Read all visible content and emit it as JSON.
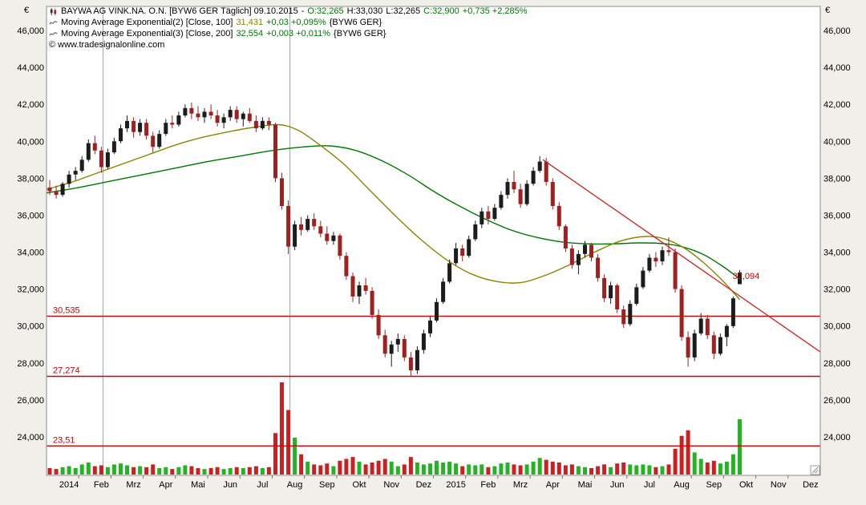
{
  "header": {
    "line1": {
      "title": "BAYWA AG VINK.NA. O.N. [BYW6 GER  Täglich] 09.10.2015",
      "sep": "-",
      "open": "O:32,265",
      "high": "H:33,030",
      "low": "L:32,265",
      "close": "C:32,900",
      "change": "+0,735 +2,285%"
    },
    "line2": {
      "name": "Moving Average Exponential(2) [Close, 100]",
      "value": "31,431",
      "change": "+0,03 +0,095%",
      "scope": "{BYW6 GER}"
    },
    "line3": {
      "name": "Moving Average Exponential(3) [Close, 200]",
      "value": "32,554",
      "change": "+0,003 +0,011%",
      "scope": "{BYW6 GER}"
    },
    "copyright": "© www.tradesignalonline.com"
  },
  "axes": {
    "currency_left": "€",
    "currency_right": "€"
  },
  "colors": {
    "background": "#f0efe9",
    "plot_bg": "#ffffff",
    "border": "#8e8e8e",
    "candle_up": "#1c1c1c",
    "candle_down": "#a02020",
    "volume_up": "#22b422",
    "volume_down": "#cc2020",
    "ema_100": "#868600",
    "ema_200": "#007700",
    "support": "#cc0000",
    "trend": "#cc2222",
    "event_line": "#8fa8b0",
    "value_up": "#007700",
    "text": "#000000"
  },
  "chart_data": {
    "type": "candlestick",
    "title": "BAYWA AG VINK.NA. O.N. [BYW6 GER Täglich]",
    "last_quote": {
      "date": "09.10.2015",
      "open": 32.265,
      "high": 33.03,
      "low": 32.265,
      "close": 32.9,
      "change_abs": 0.735,
      "change_pct": 2.285
    },
    "indicators": [
      {
        "name": "Moving Average Exponential(2) [Close, 100]",
        "last": 31.431,
        "change": "+0,03 +0,095%"
      },
      {
        "name": "Moving Average Exponential(3) [Close, 200]",
        "last": 32.554,
        "change": "+0,003 +0,011%"
      }
    ],
    "x_axis": {
      "months": [
        "2014",
        "Feb",
        "Mrz",
        "Apr",
        "Mai",
        "Jun",
        "Jul",
        "Aug",
        "Sep",
        "Okt",
        "Nov",
        "Dez",
        "2015",
        "Feb",
        "Mrz",
        "Apr",
        "Mai",
        "Jun",
        "Jul",
        "Aug",
        "Sep",
        "Okt",
        "Nov",
        "Dez"
      ]
    },
    "y_axis": {
      "ticks": [
        46,
        44,
        42,
        40,
        38,
        36,
        34,
        32,
        30,
        28,
        26,
        24
      ],
      "tick_labels": [
        "46,000",
        "44,000",
        "42,000",
        "40,000",
        "38,000",
        "36,000",
        "34,000",
        "32,000",
        "30,000",
        "28,000",
        "26,000",
        "24,000"
      ]
    },
    "candles_per_month": 5,
    "candles": [
      [
        37.5,
        37.9,
        37.1,
        37.3,
        7
      ],
      [
        37.3,
        37.6,
        36.9,
        37.1,
        6
      ],
      [
        37.1,
        37.8,
        37.0,
        37.7,
        8
      ],
      [
        37.7,
        38.4,
        37.5,
        38.2,
        9
      ],
      [
        38.2,
        38.6,
        37.9,
        38.4,
        7
      ],
      [
        38.4,
        39.2,
        38.3,
        39.0,
        11
      ],
      [
        39.0,
        40.1,
        38.9,
        39.9,
        13
      ],
      [
        39.9,
        40.3,
        39.3,
        39.5,
        9
      ],
      [
        39.5,
        39.7,
        38.3,
        38.6,
        10
      ],
      [
        38.6,
        39.6,
        38.5,
        39.4,
        8
      ],
      [
        39.4,
        40.2,
        39.3,
        40.0,
        11
      ],
      [
        40.0,
        40.9,
        39.9,
        40.7,
        12
      ],
      [
        40.7,
        41.4,
        40.5,
        41.1,
        10
      ],
      [
        41.1,
        41.3,
        40.2,
        40.5,
        8
      ],
      [
        40.5,
        41.2,
        40.3,
        41.0,
        9
      ],
      [
        41.0,
        41.2,
        40.1,
        40.3,
        8
      ],
      [
        40.3,
        40.5,
        39.4,
        39.7,
        11
      ],
      [
        39.7,
        40.6,
        39.6,
        40.4,
        7
      ],
      [
        40.4,
        41.2,
        40.3,
        41.0,
        8
      ],
      [
        41.0,
        41.4,
        40.7,
        40.9,
        6
      ],
      [
        40.9,
        41.6,
        40.8,
        41.4,
        8
      ],
      [
        41.4,
        42.0,
        41.3,
        41.8,
        10
      ],
      [
        41.8,
        42.1,
        41.2,
        41.5,
        9
      ],
      [
        41.5,
        41.9,
        41.1,
        41.3,
        7
      ],
      [
        41.3,
        41.8,
        41.0,
        41.6,
        6
      ],
      [
        41.6,
        42.0,
        41.2,
        41.4,
        7
      ],
      [
        41.4,
        41.7,
        40.8,
        41.0,
        8
      ],
      [
        41.0,
        41.5,
        40.7,
        41.3,
        6
      ],
      [
        41.3,
        41.9,
        41.1,
        41.7,
        7
      ],
      [
        41.7,
        41.9,
        41.0,
        41.2,
        8
      ],
      [
        41.2,
        41.6,
        40.8,
        41.5,
        7
      ],
      [
        41.5,
        41.8,
        41.0,
        41.1,
        8
      ],
      [
        41.1,
        41.4,
        40.5,
        40.7,
        9
      ],
      [
        40.7,
        41.3,
        40.6,
        41.1,
        7
      ],
      [
        41.1,
        41.3,
        40.6,
        40.9,
        8
      ],
      [
        40.9,
        41.0,
        37.8,
        38.0,
        45
      ],
      [
        38.0,
        38.3,
        36.3,
        36.5,
        100
      ],
      [
        36.5,
        36.8,
        33.9,
        34.3,
        70
      ],
      [
        34.3,
        35.7,
        34.1,
        35.5,
        40
      ],
      [
        35.5,
        35.9,
        34.9,
        35.2,
        22
      ],
      [
        35.2,
        36.0,
        35.1,
        35.8,
        14
      ],
      [
        35.8,
        36.1,
        35.2,
        35.4,
        11
      ],
      [
        35.4,
        35.7,
        34.8,
        35.0,
        10
      ],
      [
        35.0,
        35.4,
        34.4,
        34.6,
        12
      ],
      [
        34.6,
        35.1,
        34.4,
        34.9,
        9
      ],
      [
        34.9,
        35.0,
        33.6,
        33.8,
        15
      ],
      [
        33.8,
        34.0,
        32.5,
        32.7,
        17
      ],
      [
        32.7,
        32.9,
        31.3,
        31.6,
        19
      ],
      [
        31.6,
        32.4,
        31.2,
        32.2,
        14
      ],
      [
        32.2,
        32.6,
        31.7,
        31.9,
        11
      ],
      [
        31.9,
        32.1,
        30.4,
        30.6,
        13
      ],
      [
        30.6,
        30.9,
        29.3,
        29.5,
        15
      ],
      [
        29.5,
        29.8,
        28.3,
        28.5,
        17
      ],
      [
        28.5,
        29.2,
        27.8,
        29.0,
        14
      ],
      [
        29.0,
        29.6,
        28.6,
        29.3,
        9
      ],
      [
        29.3,
        29.5,
        28.1,
        28.3,
        11
      ],
      [
        28.3,
        28.6,
        27.3,
        27.6,
        19
      ],
      [
        27.6,
        28.9,
        27.4,
        28.7,
        13
      ],
      [
        28.7,
        29.8,
        28.5,
        29.6,
        11
      ],
      [
        29.6,
        30.5,
        29.4,
        30.3,
        12
      ],
      [
        30.3,
        31.5,
        30.2,
        31.3,
        15
      ],
      [
        31.3,
        32.6,
        31.2,
        32.4,
        13
      ],
      [
        32.4,
        33.6,
        32.3,
        33.4,
        14
      ],
      [
        33.4,
        34.5,
        33.3,
        34.2,
        12
      ],
      [
        34.2,
        34.4,
        33.5,
        33.8,
        9
      ],
      [
        33.8,
        34.9,
        33.7,
        34.7,
        11
      ],
      [
        34.7,
        35.7,
        34.6,
        35.5,
        10
      ],
      [
        35.5,
        36.4,
        35.3,
        36.2,
        11
      ],
      [
        36.2,
        36.5,
        35.5,
        35.8,
        8
      ],
      [
        35.8,
        36.6,
        35.7,
        36.4,
        9
      ],
      [
        36.4,
        37.3,
        36.3,
        37.1,
        12
      ],
      [
        37.1,
        38.0,
        36.9,
        37.8,
        13
      ],
      [
        37.8,
        38.4,
        37.2,
        37.4,
        11
      ],
      [
        37.4,
        37.7,
        36.4,
        36.6,
        10
      ],
      [
        36.6,
        37.9,
        36.5,
        37.7,
        11
      ],
      [
        37.7,
        38.6,
        37.6,
        38.4,
        14
      ],
      [
        38.4,
        39.2,
        38.3,
        38.9,
        18
      ],
      [
        38.9,
        39.1,
        37.6,
        37.8,
        16
      ],
      [
        37.8,
        38.0,
        36.3,
        36.5,
        14
      ],
      [
        36.5,
        36.7,
        35.2,
        35.4,
        13
      ],
      [
        35.4,
        35.5,
        34.0,
        34.2,
        10
      ],
      [
        34.2,
        34.4,
        33.1,
        33.3,
        11
      ],
      [
        33.3,
        34.1,
        32.8,
        33.9,
        9
      ],
      [
        33.9,
        34.6,
        33.7,
        34.4,
        8
      ],
      [
        34.4,
        34.5,
        33.5,
        33.7,
        7
      ],
      [
        33.7,
        33.9,
        32.4,
        32.6,
        9
      ],
      [
        32.6,
        32.8,
        31.3,
        31.5,
        11
      ],
      [
        31.5,
        32.4,
        31.2,
        32.2,
        8
      ],
      [
        32.2,
        32.3,
        30.7,
        30.9,
        12
      ],
      [
        30.9,
        31.1,
        29.9,
        30.1,
        13
      ],
      [
        30.1,
        31.4,
        30.0,
        31.2,
        11
      ],
      [
        31.2,
        32.3,
        31.1,
        32.1,
        10
      ],
      [
        32.1,
        33.2,
        32.0,
        33.0,
        11
      ],
      [
        33.0,
        33.9,
        32.9,
        33.7,
        10
      ],
      [
        33.7,
        34.0,
        33.2,
        33.5,
        8
      ],
      [
        33.5,
        34.3,
        33.3,
        34.1,
        9
      ],
      [
        34.1,
        34.8,
        33.8,
        34.0,
        11
      ],
      [
        34.0,
        34.2,
        31.8,
        32.0,
        28
      ],
      [
        32.0,
        32.2,
        29.2,
        29.4,
        42
      ],
      [
        29.4,
        29.7,
        27.8,
        28.3,
        48
      ],
      [
        28.3,
        29.8,
        28.1,
        29.6,
        24
      ],
      [
        29.6,
        30.7,
        29.5,
        30.4,
        17
      ],
      [
        30.4,
        30.6,
        29.3,
        29.5,
        13
      ],
      [
        29.5,
        29.7,
        28.2,
        28.5,
        15
      ],
      [
        28.5,
        29.6,
        28.4,
        29.4,
        12
      ],
      [
        29.4,
        30.1,
        28.9,
        30.0,
        14
      ],
      [
        30.0,
        31.6,
        29.9,
        31.5,
        22
      ],
      [
        32.265,
        33.03,
        32.265,
        32.9,
        60
      ]
    ],
    "ema_100": {
      "points": [
        [
          0,
          37.4
        ],
        [
          0.8,
          37.8
        ],
        [
          1.6,
          38.3
        ],
        [
          2.4,
          38.8
        ],
        [
          3.2,
          39.3
        ],
        [
          4,
          39.8
        ],
        [
          4.8,
          40.2
        ],
        [
          5.6,
          40.5
        ],
        [
          6.4,
          40.75
        ],
        [
          7.2,
          40.9
        ],
        [
          7.8,
          40.6
        ],
        [
          8.4,
          39.9
        ],
        [
          9.2,
          38.8
        ],
        [
          10,
          37.4
        ],
        [
          10.8,
          36.0
        ],
        [
          11.6,
          34.7
        ],
        [
          12.4,
          33.6
        ],
        [
          13.2,
          32.8
        ],
        [
          14,
          32.4
        ],
        [
          14.7,
          32.35
        ],
        [
          15.4,
          32.7
        ],
        [
          16.2,
          33.3
        ],
        [
          17,
          34.0
        ],
        [
          17.8,
          34.6
        ],
        [
          18.6,
          34.85
        ],
        [
          19.2,
          34.7
        ],
        [
          19.8,
          34.2
        ],
        [
          20.4,
          33.4
        ],
        [
          21,
          32.4
        ],
        [
          21.5,
          31.431
        ]
      ]
    },
    "ema_200": {
      "points": [
        [
          0,
          37.2
        ],
        [
          1,
          37.5
        ],
        [
          2,
          37.85
        ],
        [
          3,
          38.2
        ],
        [
          4,
          38.55
        ],
        [
          5,
          38.9
        ],
        [
          6,
          39.2
        ],
        [
          7,
          39.5
        ],
        [
          8,
          39.7
        ],
        [
          8.8,
          39.75
        ],
        [
          9.6,
          39.5
        ],
        [
          10.4,
          38.95
        ],
        [
          11.2,
          38.2
        ],
        [
          12,
          37.3
        ],
        [
          12.8,
          36.5
        ],
        [
          13.6,
          35.8
        ],
        [
          14.4,
          35.2
        ],
        [
          15.2,
          34.8
        ],
        [
          16,
          34.55
        ],
        [
          16.8,
          34.45
        ],
        [
          17.6,
          34.45
        ],
        [
          18.4,
          34.5
        ],
        [
          19.2,
          34.45
        ],
        [
          19.8,
          34.25
        ],
        [
          20.4,
          33.85
        ],
        [
          21,
          33.2
        ],
        [
          21.5,
          32.554
        ]
      ]
    },
    "support_lines": [
      {
        "price": 30.535,
        "label": "30,535"
      },
      {
        "price": 27.274,
        "label": "27,274"
      },
      {
        "price": 23.51,
        "label": "23,51"
      }
    ],
    "trend_line": {
      "from_month": 15.4,
      "from_price": 39.0,
      "to_month": 24,
      "to_price": 28.6,
      "label": "32,094",
      "label_month": 21.28,
      "label_price": 32.55
    },
    "event_lines_months": [
      1.75,
      7.55
    ]
  }
}
